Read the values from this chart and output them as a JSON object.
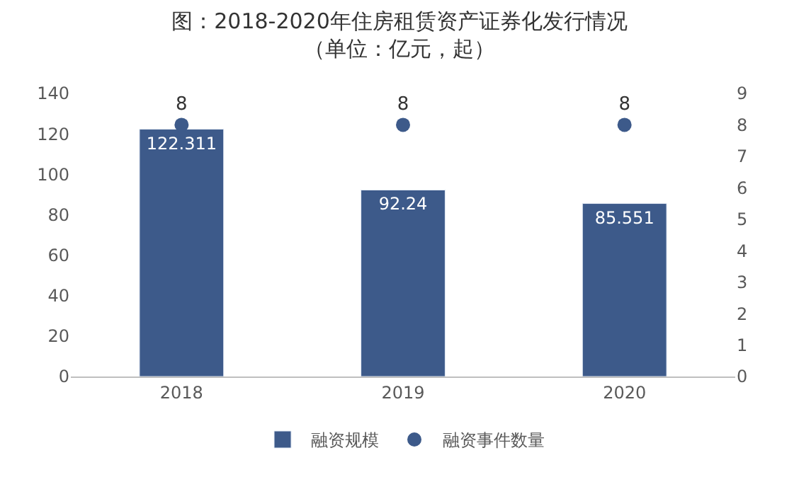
{
  "chart_data": {
    "type": "bar",
    "title": "图：2018-2020年住房租赁资产证券化发行情况",
    "subtitle": "（单位：亿元，起）",
    "categories": [
      "2018",
      "2019",
      "2020"
    ],
    "series": [
      {
        "name": "融资规模",
        "color": "#3d5a8a",
        "values": [
          122.311,
          92.24,
          85.551
        ]
      },
      {
        "name": "融资事件数量",
        "type": "scatter",
        "axis": "y2",
        "color": "#3d5a8a",
        "marker": "circle",
        "values": [
          8,
          8,
          8
        ]
      }
    ],
    "ylim": [
      0,
      140
    ],
    "yticks": [
      0,
      20,
      40,
      60,
      80,
      100,
      120,
      140
    ],
    "y2lim": [
      0,
      9
    ],
    "y2ticks": [
      0,
      1,
      2,
      3,
      4,
      5,
      6,
      7,
      8,
      9
    ],
    "data_labels": true,
    "legend": "bottom"
  }
}
